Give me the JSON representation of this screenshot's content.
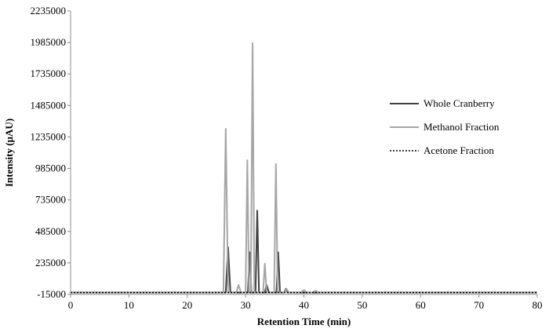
{
  "chart_data": {
    "type": "line",
    "title": "",
    "xlabel": "Retention Time (min)",
    "ylabel": "Intensity (µAU)",
    "xlim": [
      0,
      80
    ],
    "ylim": [
      -15000,
      2235000
    ],
    "x_ticks": [
      "0",
      "10",
      "20",
      "30",
      "40",
      "50",
      "60",
      "70",
      "80"
    ],
    "y_ticks": [
      "-15000",
      "235000",
      "485000",
      "735000",
      "985000",
      "1235000",
      "1485000",
      "1735000",
      "1985000",
      "2235000"
    ],
    "grid": false,
    "legend_position": "right",
    "series": [
      {
        "name": "Whole Cranberry",
        "color": "#404040",
        "style": "solid",
        "points": [
          [
            0,
            0
          ],
          [
            26.6,
            0
          ],
          [
            27.0,
            360000
          ],
          [
            27.4,
            0
          ],
          [
            30.4,
            0
          ],
          [
            30.7,
            320000
          ],
          [
            31.0,
            0
          ],
          [
            31.7,
            0
          ],
          [
            32.0,
            650000
          ],
          [
            32.3,
            0
          ],
          [
            33.3,
            0
          ],
          [
            33.6,
            60000
          ],
          [
            34.0,
            0
          ],
          [
            35.3,
            0
          ],
          [
            35.6,
            320000
          ],
          [
            35.9,
            0
          ],
          [
            36.6,
            0
          ],
          [
            36.9,
            30000
          ],
          [
            37.2,
            0
          ],
          [
            80,
            0
          ]
        ]
      },
      {
        "name": "Methanol Fraction",
        "color": "#a6a6a6",
        "style": "solid",
        "points": [
          [
            0,
            0
          ],
          [
            26.2,
            0
          ],
          [
            26.6,
            1300000
          ],
          [
            27.0,
            0
          ],
          [
            28.4,
            0
          ],
          [
            28.8,
            60000
          ],
          [
            29.2,
            0
          ],
          [
            30.0,
            0
          ],
          [
            30.3,
            1050000
          ],
          [
            30.6,
            0
          ],
          [
            30.9,
            0
          ],
          [
            31.2,
            1980000
          ],
          [
            31.5,
            0
          ],
          [
            33.0,
            0
          ],
          [
            33.3,
            230000
          ],
          [
            33.6,
            0
          ],
          [
            34.9,
            0
          ],
          [
            35.2,
            1020000
          ],
          [
            35.5,
            0
          ],
          [
            36.6,
            0
          ],
          [
            37.0,
            30000
          ],
          [
            37.4,
            0
          ],
          [
            39.5,
            0
          ],
          [
            40.0,
            20000
          ],
          [
            40.5,
            0
          ],
          [
            41.5,
            0
          ],
          [
            42.0,
            15000
          ],
          [
            42.5,
            0
          ],
          [
            80,
            0
          ]
        ]
      },
      {
        "name": "Acetone Fraction",
        "color": "#000000",
        "style": "dotted",
        "points": [
          [
            0,
            0
          ],
          [
            80,
            0
          ]
        ]
      }
    ]
  }
}
